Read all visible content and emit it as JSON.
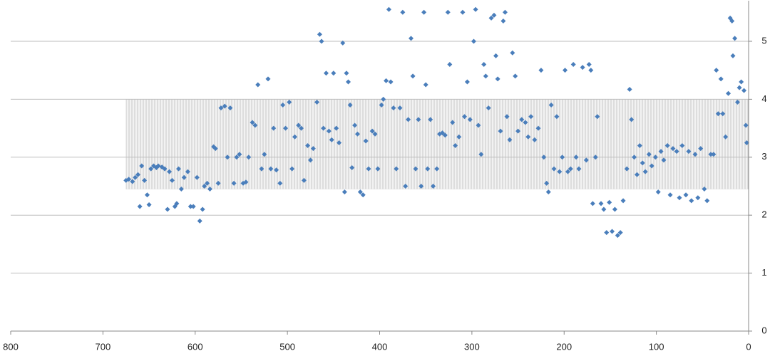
{
  "chart_data": {
    "type": "scatter",
    "xlim": [
      800,
      0
    ],
    "ylim": [
      0,
      5.7
    ],
    "xticks": [
      800,
      700,
      600,
      500,
      400,
      300,
      200,
      100,
      0
    ],
    "yticks": [
      0,
      1,
      2,
      3,
      4,
      5
    ],
    "grid": true,
    "color": "#4a7ebb",
    "band": {
      "x": [
        0,
        675
      ],
      "y": [
        2.45,
        4.0
      ],
      "color": "#d9d9d9"
    },
    "series": [
      {
        "color": "#4a7ebb",
        "x": [
          675,
          672,
          668,
          665,
          662,
          660,
          658,
          655,
          652,
          650,
          648,
          645,
          642,
          640,
          636,
          633,
          630,
          628,
          625,
          622,
          620,
          618,
          615,
          612,
          608,
          605,
          602,
          598,
          595,
          592,
          590,
          587,
          584,
          580,
          578,
          575,
          572,
          568,
          565,
          562,
          558,
          555,
          552,
          548,
          545,
          542,
          538,
          535,
          532,
          528,
          525,
          521,
          518,
          515,
          512,
          508,
          505,
          502,
          498,
          495,
          492,
          488,
          485,
          482,
          478,
          475,
          472,
          468,
          465,
          463,
          461,
          458,
          455,
          452,
          450,
          447,
          444,
          440,
          438,
          436,
          434,
          432,
          430,
          427,
          424,
          421,
          418,
          415,
          412,
          408,
          405,
          402,
          398,
          396,
          393,
          390,
          388,
          385,
          382,
          378,
          375,
          372,
          369,
          366,
          364,
          361,
          358,
          355,
          352,
          350,
          348,
          345,
          342,
          338,
          335,
          332,
          329,
          326,
          324,
          321,
          318,
          314,
          310,
          308,
          305,
          302,
          298,
          296,
          293,
          290,
          287,
          285,
          282,
          279,
          276,
          274,
          272,
          269,
          266,
          264,
          262,
          259,
          256,
          253,
          250,
          246,
          242,
          239,
          236,
          232,
          228,
          225,
          222,
          219,
          217,
          214,
          211,
          208,
          205,
          202,
          199,
          196,
          193,
          190,
          187,
          184,
          180,
          176,
          173,
          171,
          169,
          166,
          164,
          160,
          157,
          154,
          151,
          148,
          145,
          142,
          139,
          136,
          132,
          129,
          127,
          124,
          121,
          118,
          115,
          112,
          108,
          105,
          101,
          98,
          95,
          92,
          88,
          85,
          82,
          78,
          75,
          72,
          68,
          65,
          62,
          58,
          55,
          52,
          48,
          45,
          41,
          38,
          35,
          33,
          30,
          28,
          25,
          22,
          20,
          18,
          17,
          15,
          12,
          10,
          8,
          5,
          3,
          2
        ],
        "values": [
          2.6,
          2.62,
          2.58,
          2.65,
          2.7,
          2.15,
          2.85,
          2.6,
          2.35,
          2.18,
          2.8,
          2.85,
          2.82,
          2.85,
          2.83,
          2.8,
          2.1,
          2.75,
          2.6,
          2.15,
          2.2,
          2.8,
          2.45,
          2.65,
          2.75,
          2.15,
          2.15,
          2.65,
          1.9,
          2.1,
          2.5,
          2.55,
          2.45,
          3.18,
          3.15,
          2.55,
          3.85,
          3.88,
          3.0,
          3.85,
          2.55,
          3.0,
          3.05,
          2.55,
          2.57,
          3.0,
          3.6,
          3.55,
          4.25,
          2.8,
          3.05,
          4.35,
          2.8,
          3.5,
          2.78,
          2.55,
          3.9,
          3.5,
          3.95,
          2.8,
          3.35,
          3.55,
          3.5,
          2.6,
          3.2,
          2.95,
          3.15,
          3.95,
          5.12,
          5.0,
          3.5,
          4.45,
          3.45,
          3.3,
          4.45,
          3.5,
          3.25,
          4.97,
          2.4,
          4.45,
          4.3,
          3.9,
          2.82,
          3.55,
          3.4,
          2.4,
          2.35,
          3.28,
          2.8,
          3.45,
          3.4,
          2.8,
          3.9,
          4.0,
          4.32,
          5.55,
          4.3,
          3.85,
          2.8,
          3.85,
          5.5,
          2.5,
          3.65,
          5.05,
          4.4,
          2.8,
          3.65,
          2.5,
          5.5,
          4.25,
          2.8,
          3.65,
          2.5,
          2.8,
          3.4,
          3.42,
          3.38,
          5.5,
          4.6,
          3.6,
          3.2,
          3.35,
          5.5,
          3.7,
          4.3,
          3.65,
          5.0,
          5.55,
          3.55,
          3.05,
          4.6,
          4.4,
          3.85,
          5.4,
          5.45,
          4.75,
          4.35,
          3.45,
          5.35,
          5.5,
          3.7,
          3.3,
          4.8,
          4.4,
          3.45,
          3.65,
          3.6,
          3.35,
          3.7,
          3.3,
          3.5,
          4.5,
          3.0,
          2.55,
          2.4,
          3.9,
          2.8,
          3.7,
          2.75,
          3.0,
          4.5,
          2.75,
          2.8,
          4.6,
          3.0,
          2.8,
          4.55,
          2.95,
          4.6,
          4.5,
          2.2,
          3.0,
          3.7,
          2.2,
          2.1,
          1.7,
          2.22,
          1.72,
          2.1,
          1.65,
          1.7,
          2.25,
          2.8,
          4.17,
          3.65,
          3.0,
          2.7,
          3.2,
          2.9,
          2.75,
          3.05,
          2.85,
          3.0,
          2.4,
          3.1,
          2.95,
          3.2,
          2.35,
          3.15,
          3.1,
          2.3,
          3.2,
          2.35,
          3.1,
          2.25,
          3.05,
          2.3,
          3.15,
          2.45,
          2.25,
          3.05,
          3.05,
          4.5,
          3.75,
          4.35,
          3.75,
          3.35,
          4.1,
          5.4,
          5.35,
          4.75,
          5.05,
          3.95,
          4.2,
          4.3,
          4.15,
          3.55,
          3.25
        ]
      }
    ]
  }
}
